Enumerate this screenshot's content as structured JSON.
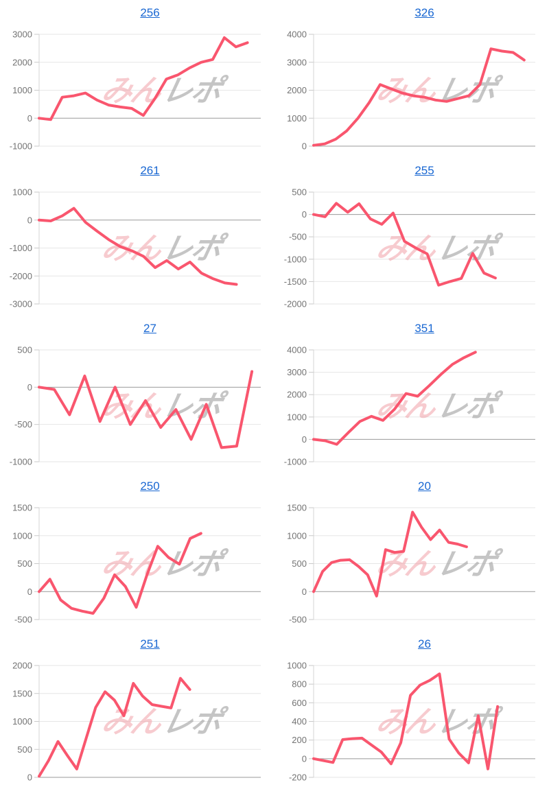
{
  "page": {
    "background": "#ffffff"
  },
  "watermark": {
    "pink_text": "みん",
    "gray_text": "レポ"
  },
  "colors": {
    "line": "#f9566e",
    "title_link": "#1967d2",
    "grid_line": "#e6e6e6",
    "zero_line": "#999999",
    "axis_line": "#d4d4d4",
    "tick_dash": "#c9c9c9",
    "tick_label": "#737373",
    "watermark_pink": "#f1a0a8",
    "watermark_gray": "#9f9f9f"
  },
  "chart_data": [
    {
      "type": "line",
      "title": "256",
      "yticks": [
        -1000,
        0,
        1000,
        2000,
        3000
      ],
      "ylim": [
        -1000,
        3000
      ],
      "x_end_fraction": 0.94,
      "grid": true,
      "legend": "none",
      "values": [
        0,
        -50,
        750,
        800,
        900,
        650,
        470,
        400,
        350,
        100,
        700,
        1400,
        1550,
        1800,
        2000,
        2100,
        2880,
        2550,
        2700
      ]
    },
    {
      "type": "line",
      "title": "326",
      "yticks": [
        0,
        1000,
        2000,
        3000,
        4000
      ],
      "ylim": [
        0,
        4000
      ],
      "x_end_fraction": 0.95,
      "grid": true,
      "legend": "none",
      "values": [
        30,
        80,
        250,
        550,
        1000,
        1550,
        2200,
        2050,
        1900,
        1800,
        1750,
        1650,
        1600,
        1700,
        1800,
        2200,
        3480,
        3400,
        3350,
        3080
      ]
    },
    {
      "type": "line",
      "title": "261",
      "yticks": [
        -3000,
        -2000,
        -1000,
        0,
        1000
      ],
      "ylim": [
        -3000,
        1000
      ],
      "x_end_fraction": 0.89,
      "grid": true,
      "legend": "none",
      "values": [
        0,
        -30,
        150,
        420,
        -80,
        -400,
        -700,
        -950,
        -1100,
        -1300,
        -1700,
        -1450,
        -1750,
        -1500,
        -1900,
        -2100,
        -2250,
        -2300
      ]
    },
    {
      "type": "line",
      "title": "255",
      "yticks": [
        -2000,
        -1500,
        -1000,
        -500,
        0,
        500
      ],
      "ylim": [
        -2000,
        500
      ],
      "x_end_fraction": 0.82,
      "grid": true,
      "legend": "none",
      "values": [
        0,
        -50,
        250,
        50,
        240,
        -100,
        -220,
        30,
        -600,
        -750,
        -880,
        -1580,
        -1500,
        -1430,
        -870,
        -1310,
        -1420
      ]
    },
    {
      "type": "line",
      "title": "27",
      "yticks": [
        -1000,
        -500,
        0,
        500
      ],
      "ylim": [
        -1000,
        500
      ],
      "x_end_fraction": 0.96,
      "grid": true,
      "legend": "none",
      "values": [
        0,
        -30,
        -370,
        150,
        -460,
        0,
        -500,
        -180,
        -540,
        -300,
        -700,
        -230,
        -810,
        -790,
        210
      ]
    },
    {
      "type": "line",
      "title": "351",
      "yticks": [
        -1000,
        0,
        1000,
        2000,
        3000,
        4000
      ],
      "ylim": [
        -1000,
        4000
      ],
      "x_end_fraction": 0.73,
      "grid": true,
      "legend": "none",
      "values": [
        0,
        -60,
        -220,
        300,
        800,
        1030,
        850,
        1350,
        2050,
        1930,
        2400,
        2900,
        3350,
        3650,
        3900
      ]
    },
    {
      "type": "line",
      "title": "250",
      "yticks": [
        -500,
        0,
        500,
        1000,
        1500
      ],
      "ylim": [
        -500,
        1500
      ],
      "x_end_fraction": 0.73,
      "grid": true,
      "legend": "none",
      "values": [
        0,
        220,
        -150,
        -300,
        -350,
        -390,
        -120,
        300,
        90,
        -280,
        300,
        810,
        610,
        490,
        950,
        1040
      ]
    },
    {
      "type": "line",
      "title": "20",
      "yticks": [
        -500,
        0,
        500,
        1000,
        1500
      ],
      "ylim": [
        -500,
        1500
      ],
      "x_end_fraction": 0.69,
      "grid": true,
      "legend": "none",
      "values": [
        0,
        360,
        520,
        560,
        570,
        450,
        300,
        -80,
        750,
        700,
        720,
        1420,
        1150,
        930,
        1100,
        880,
        850,
        800
      ]
    },
    {
      "type": "line",
      "title": "251",
      "yticks": [
        0,
        500,
        1000,
        1500,
        2000
      ],
      "ylim": [
        0,
        2000
      ],
      "x_end_fraction": 0.68,
      "grid": true,
      "legend": "none",
      "values": [
        20,
        300,
        640,
        390,
        150,
        700,
        1250,
        1530,
        1380,
        1100,
        1680,
        1450,
        1300,
        1270,
        1240,
        1770,
        1570
      ]
    },
    {
      "type": "line",
      "title": "26",
      "yticks": [
        -200,
        0,
        200,
        400,
        600,
        800,
        1000
      ],
      "ylim": [
        -200,
        1000
      ],
      "x_end_fraction": 0.83,
      "grid": true,
      "legend": "none",
      "values": [
        0,
        -20,
        -40,
        205,
        215,
        220,
        145,
        70,
        -55,
        170,
        680,
        790,
        840,
        910,
        210,
        60,
        -45,
        460,
        -110,
        560
      ]
    }
  ]
}
